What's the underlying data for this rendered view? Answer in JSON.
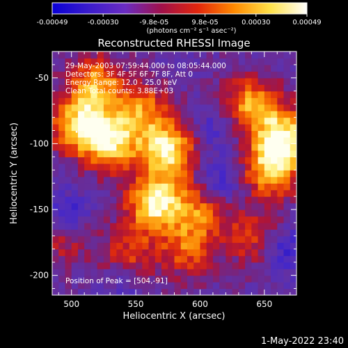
{
  "chart_data": {
    "type": "heatmap",
    "title": "Reconstructed RHESSI Image",
    "xlabel": "Heliocentric X (arcsec)",
    "ylabel": "Heliocentric Y (arcsec)",
    "xlim": [
      485,
      675
    ],
    "ylim": [
      -215,
      -30
    ],
    "x_ticks": [
      500,
      550,
      600,
      650
    ],
    "y_ticks": [
      -50,
      -100,
      -150,
      -200
    ],
    "colorbar": {
      "tick_labels": [
        "-0.00049",
        "-0.00030",
        "-9.8e-05",
        "9.8e-05",
        "0.00030",
        "0.00049"
      ],
      "range": [
        -0.00049,
        0.00049
      ],
      "unit_label": "(photons cm⁻² s⁻¹ asec⁻²)",
      "colors": [
        "#0a00d6",
        "#3a1ccc",
        "#6a2cc2",
        "#a0104a",
        "#e2260c",
        "#ff8a00",
        "#ffe24a",
        "#ffffff"
      ]
    },
    "annotations": [
      "29-May-2003 07:59:44.000 to 08:05:44.000",
      "Detectors: 3F 4F 5F 6F 7F 8F, Att 0",
      "Energy Range: 12.0 - 25.0 keV",
      "Clean    Total counts: 3.88E+03"
    ],
    "peak_label": "Position of Peak = [504,-91]",
    "peak": [
      504,
      -91
    ],
    "timestamp": "1-May-2022 23:40",
    "grid": false,
    "sources": [
      {
        "x": 565,
        "y": -145,
        "level": 1.0
      },
      {
        "x": 575,
        "y": -105,
        "level": 0.95
      },
      {
        "x": 530,
        "y": -98,
        "level": 0.92
      },
      {
        "x": 505,
        "y": -85,
        "level": 0.82
      },
      {
        "x": 665,
        "y": -95,
        "level": 0.95
      },
      {
        "x": 655,
        "y": -120,
        "level": 0.78
      },
      {
        "x": 640,
        "y": -70,
        "level": 0.7
      },
      {
        "x": 520,
        "y": -55,
        "level": 0.7
      },
      {
        "x": 555,
        "y": -75,
        "level": 0.6
      },
      {
        "x": 600,
        "y": -150,
        "level": 0.55
      },
      {
        "x": 590,
        "y": -180,
        "level": 0.5
      },
      {
        "x": 545,
        "y": -185,
        "level": 0.45
      },
      {
        "x": 495,
        "y": -170,
        "level": 0.4
      },
      {
        "x": 640,
        "y": -170,
        "level": 0.45
      }
    ],
    "minima": [
      {
        "x": 497,
        "y": -155,
        "level": 1.0
      },
      {
        "x": 615,
        "y": -130,
        "level": 0.75
      },
      {
        "x": 665,
        "y": -180,
        "level": 0.75
      },
      {
        "x": 610,
        "y": -90,
        "level": 0.55
      },
      {
        "x": 540,
        "y": -205,
        "level": 0.5
      }
    ]
  }
}
